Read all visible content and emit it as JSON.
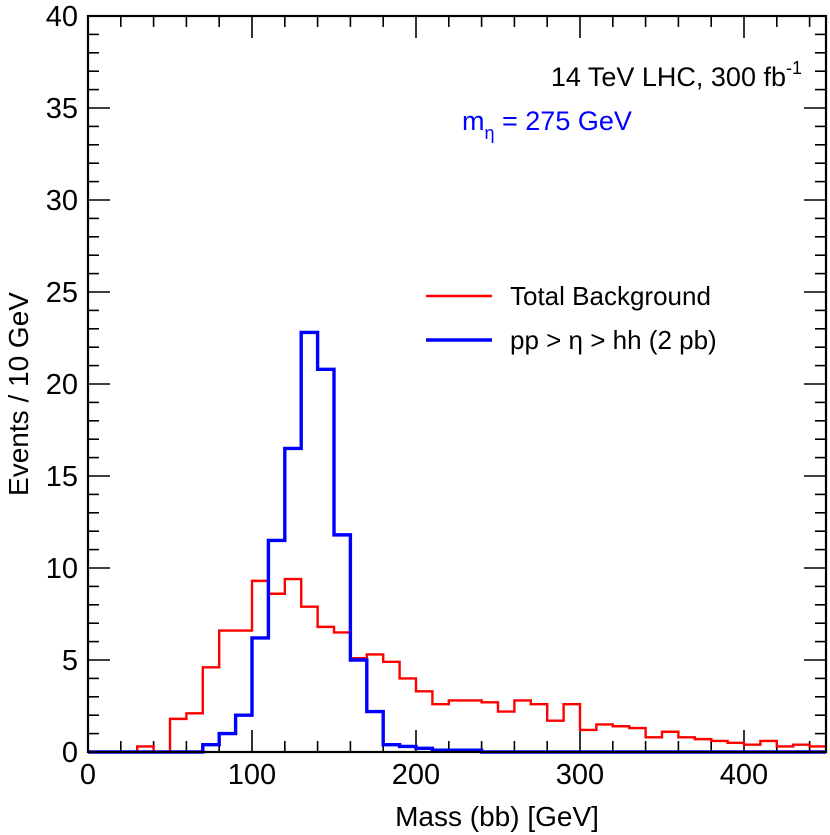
{
  "chart_data": {
    "type": "histogram",
    "xlabel": "Mass (bb)  [GeV]",
    "ylabel": "Events / 10 GeV",
    "xlim": [
      0,
      450
    ],
    "ylim": [
      0,
      40
    ],
    "xticks": [
      0,
      100,
      200,
      300,
      400
    ],
    "yticks": [
      0,
      5,
      10,
      15,
      20,
      25,
      30,
      35,
      40
    ],
    "annotations": {
      "line1": "14 TeV LHC, 300 fb",
      "line1_sup": "-1",
      "line2_main": "m",
      "line2_sub": "η",
      "line2_rest": " = 275 GeV",
      "line2_color": "#0000ff"
    },
    "bin_edges": [
      0,
      10,
      20,
      30,
      40,
      50,
      60,
      70,
      80,
      90,
      100,
      110,
      120,
      130,
      140,
      150,
      160,
      170,
      180,
      190,
      200,
      210,
      220,
      230,
      240,
      250,
      260,
      270,
      280,
      290,
      300,
      310,
      320,
      330,
      340,
      350,
      360,
      370,
      380,
      390,
      400,
      410,
      420,
      430,
      440,
      450
    ],
    "series": [
      {
        "name": "Total Background",
        "color": "#ff0000",
        "values": [
          0,
          0,
          0,
          0.3,
          0,
          1.8,
          2.1,
          4.6,
          6.6,
          6.6,
          9.3,
          8.6,
          9.4,
          7.9,
          6.8,
          6.5,
          5.1,
          5.3,
          4.9,
          4.0,
          3.3,
          2.6,
          2.8,
          2.8,
          2.7,
          2.2,
          2.8,
          2.6,
          1.7,
          2.6,
          1.2,
          1.5,
          1.4,
          1.3,
          0.8,
          1.1,
          0.8,
          0.7,
          0.6,
          0.5,
          0.4,
          0.6,
          0.3,
          0.4,
          0.3
        ]
      },
      {
        "name": "pp > η >  hh (2 pb)",
        "color": "#0000ff",
        "values": [
          0,
          0,
          0,
          0,
          0,
          0,
          0,
          0.4,
          1.0,
          2.0,
          6.2,
          11.5,
          16.5,
          22.8,
          20.8,
          11.8,
          5.0,
          2.2,
          0.4,
          0.3,
          0.2,
          0.1,
          0.1,
          0.1,
          0,
          0,
          0,
          0,
          0,
          0,
          0,
          0,
          0,
          0,
          0,
          0,
          0,
          0,
          0,
          0,
          0,
          0,
          0,
          0,
          0
        ]
      }
    ],
    "legend_position": "center-right"
  }
}
